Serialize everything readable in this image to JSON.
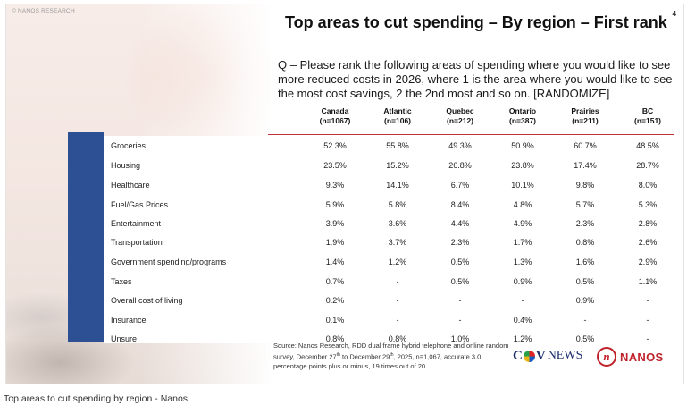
{
  "watermark": "© NANOS RESEARCH",
  "title": "Top areas to cut spending – By region – First rank",
  "page_number": "4",
  "question": "Q – Please rank the following areas of spending where you would like to see more reduced costs in 2026, where 1 is the area where you would like to see the most cost savings, 2 the 2nd most and so on. [RANDOMIZE]",
  "columns": [
    {
      "name": "Canada",
      "n": "(n=1067)"
    },
    {
      "name": "Atlantic",
      "n": "(n=106)"
    },
    {
      "name": "Quebec",
      "n": "(n=212)"
    },
    {
      "name": "Ontario",
      "n": "(n=387)"
    },
    {
      "name": "Prairies",
      "n": "(n=211)"
    },
    {
      "name": "BC",
      "n": "(n=151)"
    }
  ],
  "rows": [
    {
      "label": "Groceries",
      "values": [
        "52.3%",
        "55.8%",
        "49.3%",
        "50.9%",
        "60.7%",
        "48.5%"
      ]
    },
    {
      "label": "Housing",
      "values": [
        "23.5%",
        "15.2%",
        "26.8%",
        "23.8%",
        "17.4%",
        "28.7%"
      ]
    },
    {
      "label": "Healthcare",
      "values": [
        "9.3%",
        "14.1%",
        "6.7%",
        "10.1%",
        "9.8%",
        "8.0%"
      ]
    },
    {
      "label": "Fuel/Gas Prices",
      "values": [
        "5.9%",
        "5.8%",
        "8.4%",
        "4.8%",
        "5.7%",
        "5.3%"
      ]
    },
    {
      "label": "Entertainment",
      "values": [
        "3.9%",
        "3.6%",
        "4.4%",
        "4.9%",
        "2.3%",
        "2.8%"
      ]
    },
    {
      "label": "Transportation",
      "values": [
        "1.9%",
        "3.7%",
        "2.3%",
        "1.7%",
        "0.8%",
        "2.6%"
      ]
    },
    {
      "label": "Government spending/programs",
      "values": [
        "1.4%",
        "1.2%",
        "0.5%",
        "1.3%",
        "1.6%",
        "2.9%"
      ]
    },
    {
      "label": "Taxes",
      "values": [
        "0.7%",
        "-",
        "0.5%",
        "0.9%",
        "0.5%",
        "1.1%"
      ]
    },
    {
      "label": "Overall cost of living",
      "values": [
        "0.2%",
        "-",
        "-",
        "-",
        "0.9%",
        "-"
      ]
    },
    {
      "label": "Insurance",
      "values": [
        "0.1%",
        "-",
        "-",
        "0.4%",
        "-",
        "-"
      ]
    },
    {
      "label": "Unsure",
      "values": [
        "0.8%",
        "0.8%",
        "1.0%",
        "1.2%",
        "0.5%",
        "-"
      ]
    }
  ],
  "source": {
    "part1": "Source: Nanos Research, RDD dual frame hybrid telephone and online random survey, December 27",
    "sup1": "th",
    "part2": " to December 29",
    "sup2": "th",
    "part3": ", 2025, n=1,067, accurate 3.0 percentage points plus or minus, 19 times out of 20."
  },
  "logos": {
    "ctv_c": "C",
    "ctv_v": "V",
    "ctv_news": "NEWS",
    "nanos_mark": "n",
    "nanos_word": "NANOS"
  },
  "caption": "Top areas to cut spending by region - Nanos"
}
